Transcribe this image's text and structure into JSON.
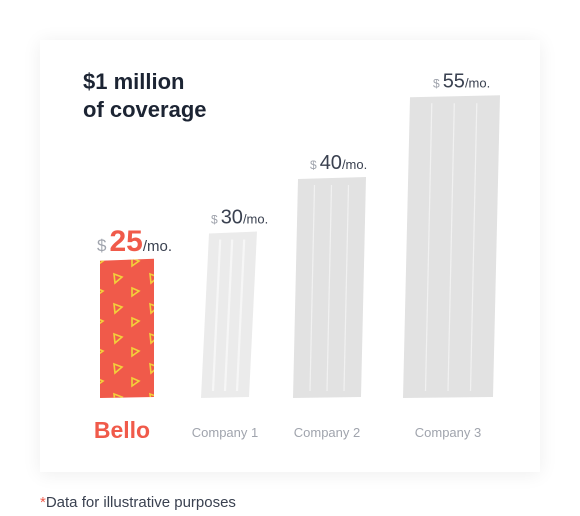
{
  "colors": {
    "accent": "#f05a4a",
    "bar_gray": "#e2e2e2",
    "label_gray": "#a0a4ad",
    "price_dark": "#3a4150",
    "title": "#1c2433"
  },
  "chart_data": {
    "type": "bar",
    "title_lines": [
      "$1 million",
      "of coverage"
    ],
    "categories": [
      "Bello",
      "Company 1",
      "Company 2",
      "Company 3"
    ],
    "values": [
      25,
      30,
      40,
      55
    ],
    "value_labels": [
      {
        "currency": "$",
        "amount": "25",
        "unit": "/mo."
      },
      {
        "currency": "$",
        "amount": "30",
        "unit": "/mo."
      },
      {
        "currency": "$",
        "amount": "40",
        "unit": "/mo."
      },
      {
        "currency": "$",
        "amount": "55",
        "unit": "/mo."
      }
    ],
    "highlight_index": 0,
    "xlabel": "",
    "ylabel": "",
    "ylim": [
      0,
      55
    ],
    "grid": false,
    "legend": "none"
  },
  "footnote": {
    "star": "*",
    "text": "Data for illustrative purposes"
  }
}
